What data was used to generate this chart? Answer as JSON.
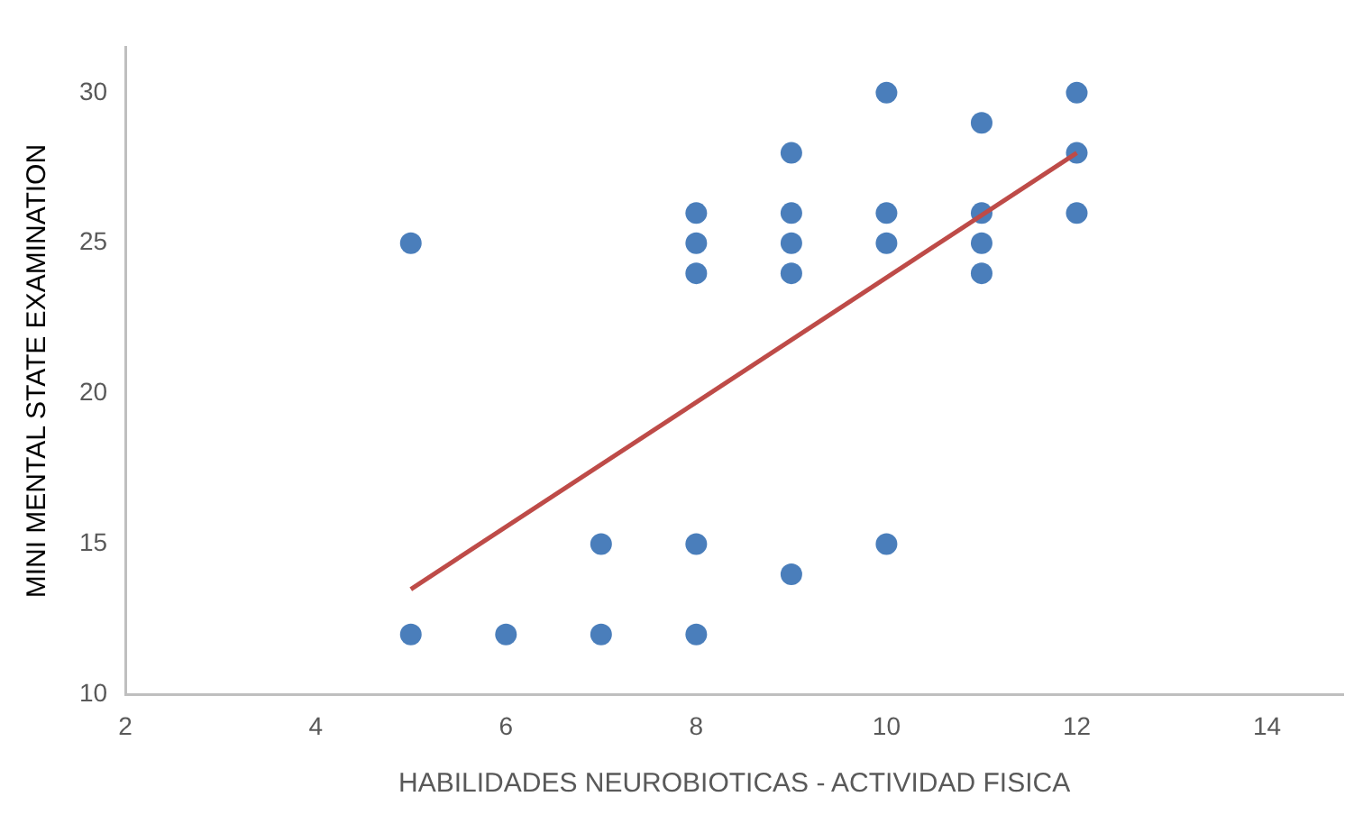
{
  "chart_data": {
    "type": "scatter",
    "xlabel": "HABILIDADES NEUROBIOTICAS - ACTIVIDAD FISICA",
    "ylabel": "MINI MENTAL STATE EXAMINATION",
    "xlim": [
      2,
      14.8
    ],
    "xticks": [
      2,
      4,
      6,
      8,
      10,
      12,
      14
    ],
    "ylim": [
      10,
      31.5
    ],
    "yticks": [
      10,
      15,
      20,
      25,
      30
    ],
    "grid": false,
    "legend": false,
    "marker": "circle",
    "series": [
      {
        "type": "scatter",
        "color": "#4a7ebb",
        "x": [
          5,
          5,
          6,
          7,
          7,
          8,
          8,
          8,
          8,
          8,
          9,
          9,
          9,
          9,
          9,
          10,
          10,
          10,
          10,
          11,
          11,
          11,
          11,
          12,
          12,
          12
        ],
        "values": [
          25,
          12,
          12,
          15,
          12,
          26,
          25,
          24,
          15,
          12,
          28,
          26,
          25,
          24,
          14,
          30,
          26,
          25,
          15,
          29,
          26,
          25,
          24,
          30,
          28,
          26
        ]
      },
      {
        "type": "line",
        "color": "#be4b48",
        "x": [
          5,
          12
        ],
        "values": [
          13.5,
          28
        ],
        "marker": "none",
        "line_style": "solid"
      }
    ]
  }
}
